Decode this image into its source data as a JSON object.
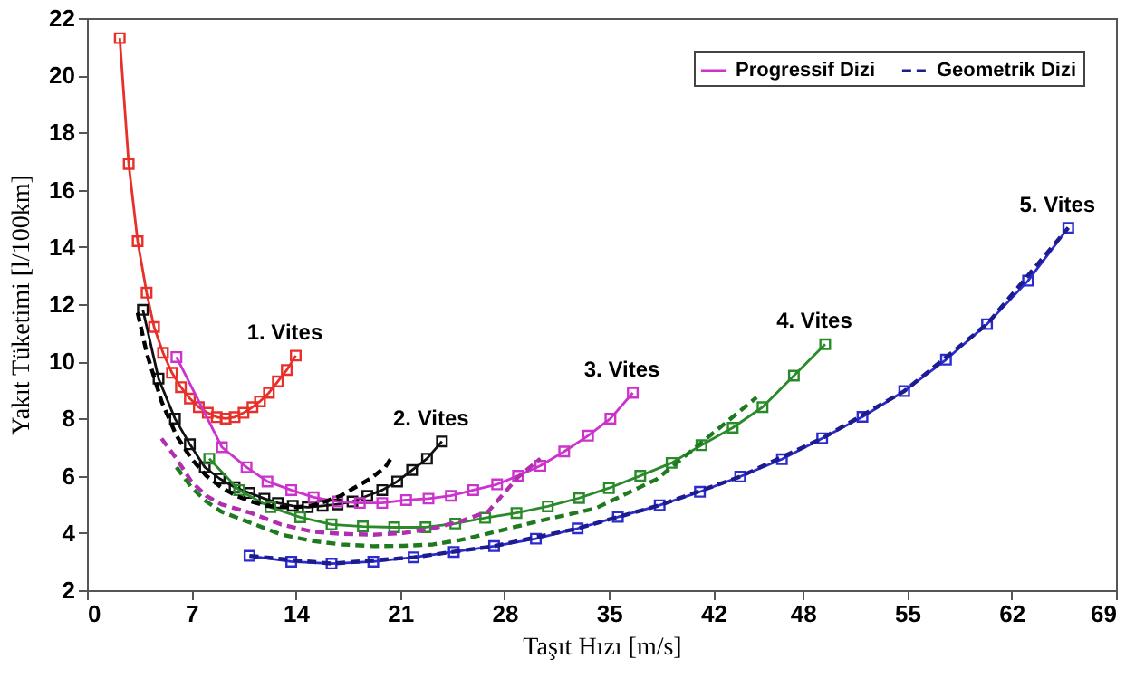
{
  "chart_data": {
    "type": "line",
    "xlabel": "Taşıt Hızı [m/s]",
    "ylabel": "Yakıt Tüketimi [l/100km]",
    "xlim": [
      0,
      69
    ],
    "xticks": [
      0,
      7,
      14,
      21,
      28,
      35,
      42,
      48,
      55,
      62,
      69
    ],
    "ylim": [
      2,
      22
    ],
    "yticks": [
      2,
      4,
      6,
      8,
      10,
      12,
      14,
      16,
      18,
      20,
      22
    ],
    "grid": false,
    "legend": "top right",
    "series": [
      {
        "color": "#e8302a",
        "marker": "square",
        "line_style": "solid",
        "x": [
          2.2,
          2.8,
          3.4,
          4.0,
          4.5,
          5.1,
          5.7,
          6.3,
          6.9,
          7.5,
          8.1,
          8.7,
          9.3,
          9.9,
          10.5,
          11.1,
          11.6,
          12.2,
          12.8,
          13.4,
          14.0
        ],
        "values": [
          21.3,
          16.9,
          14.2,
          12.4,
          11.2,
          10.3,
          9.6,
          9.1,
          8.7,
          8.4,
          8.2,
          8.05,
          8.0,
          8.05,
          8.2,
          8.4,
          8.6,
          8.9,
          9.3,
          9.7,
          10.2
        ]
      },
      {
        "color": "#111111",
        "marker": "square",
        "line_style": "solid",
        "x": [
          3.75,
          4.8,
          5.9,
          6.9,
          7.9,
          8.9,
          9.9,
          10.9,
          11.9,
          12.8,
          13.8,
          14.8,
          15.8,
          16.8,
          17.8,
          18.8,
          19.8,
          20.8,
          21.8,
          22.8,
          23.8
        ],
        "values": [
          11.8,
          9.4,
          8.0,
          7.1,
          6.3,
          5.9,
          5.6,
          5.4,
          5.2,
          5.05,
          4.95,
          4.9,
          4.95,
          5.0,
          5.1,
          5.3,
          5.5,
          5.8,
          6.2,
          6.6,
          7.2
        ]
      },
      {
        "name": "Progressif Dizi",
        "color": "#cc33cc",
        "marker": "square",
        "line_style": "solid",
        "x": [
          6.0,
          9.05,
          10.7,
          12.1,
          13.7,
          15.2,
          16.8,
          18.3,
          19.8,
          21.4,
          22.9,
          24.4,
          25.9,
          27.5,
          28.9,
          30.4,
          32.0,
          33.6,
          35.1,
          36.6
        ],
        "values": [
          10.15,
          7.0,
          6.3,
          5.8,
          5.5,
          5.25,
          5.1,
          5.05,
          5.05,
          5.15,
          5.2,
          5.3,
          5.5,
          5.7,
          6.0,
          6.35,
          6.85,
          7.4,
          8.0,
          8.9
        ]
      },
      {
        "color": "#2a8a2a",
        "marker": "square",
        "line_style": "solid",
        "x": [
          8.2,
          10.2,
          12.3,
          14.3,
          16.4,
          18.5,
          20.6,
          22.7,
          24.7,
          26.7,
          28.8,
          30.9,
          33.0,
          35.0,
          37.1,
          39.2,
          41.2,
          43.3,
          45.3,
          47.4,
          49.5
        ],
        "values": [
          6.6,
          5.5,
          4.9,
          4.55,
          4.3,
          4.23,
          4.2,
          4.2,
          4.33,
          4.53,
          4.7,
          4.93,
          5.22,
          5.57,
          6.0,
          6.45,
          7.07,
          7.68,
          8.4,
          9.5,
          10.6
        ]
      },
      {
        "color": "#2b2bd0",
        "marker": "square",
        "line_style": "solid",
        "x": [
          10.9,
          13.7,
          16.4,
          19.2,
          21.9,
          24.6,
          27.3,
          30.1,
          32.9,
          35.6,
          38.4,
          41.1,
          43.8,
          46.6,
          49.3,
          52.0,
          54.8,
          57.6,
          60.35,
          63.1,
          65.8
        ],
        "values": [
          3.2,
          3.0,
          2.93,
          3.0,
          3.15,
          3.34,
          3.54,
          3.8,
          4.16,
          4.56,
          4.97,
          5.44,
          5.97,
          6.58,
          7.31,
          8.06,
          8.96,
          10.06,
          11.3,
          12.82,
          14.67
        ]
      },
      {
        "color": "#000000",
        "marker": "none",
        "line_style": "dashed",
        "x": [
          3.4,
          4.0,
          5.0,
          6.0,
          7.0,
          8.0,
          9.0,
          10.0,
          11.0,
          12.0,
          13.0,
          14.0,
          15.0,
          16.0,
          17.0,
          18.0,
          19.0,
          20.0,
          20.5
        ],
        "values": [
          11.7,
          10.3,
          8.6,
          7.4,
          6.6,
          6.0,
          5.6,
          5.3,
          5.1,
          4.95,
          4.9,
          4.9,
          4.95,
          5.1,
          5.3,
          5.6,
          5.9,
          6.3,
          6.7
        ]
      },
      {
        "color": "#b02fb0",
        "marker": "none",
        "line_style": "dashed",
        "x": [
          5.0,
          6.0,
          7.0,
          8.0,
          9.0,
          11.0,
          13.0,
          15.1,
          17.1,
          19.2,
          21.2,
          23.2,
          25.0,
          26.9,
          28.9,
          30.4
        ],
        "values": [
          7.3,
          6.6,
          5.8,
          5.3,
          5.0,
          4.7,
          4.3,
          4.05,
          3.97,
          3.94,
          4.0,
          4.16,
          4.4,
          4.75,
          5.95,
          6.6
        ]
      },
      {
        "color": "#1f7a1f",
        "marker": "none",
        "line_style": "dashed",
        "x": [
          6.0,
          7.0,
          8.0,
          9.0,
          11.0,
          13.0,
          15.1,
          17.1,
          19.2,
          21.2,
          23.2,
          25.0,
          26.9,
          30.0,
          34.1,
          38.2,
          41.0,
          44.9
        ],
        "values": [
          6.3,
          5.6,
          5.1,
          4.75,
          4.35,
          3.95,
          3.72,
          3.6,
          3.54,
          3.55,
          3.6,
          3.75,
          3.98,
          4.38,
          4.86,
          5.88,
          7.07,
          8.74
        ]
      },
      {
        "name": "Geometrik Dizi",
        "color": "#1c1c8c",
        "marker": "none",
        "line_style": "dashed",
        "x": [
          10.9,
          16.4,
          21.9,
          27.3,
          32.9,
          38.4,
          43.8,
          49.3,
          54.8,
          60.35,
          65.8
        ],
        "values": [
          3.2,
          2.93,
          3.15,
          3.54,
          4.16,
          4.97,
          5.97,
          7.31,
          8.96,
          11.3,
          14.67
        ]
      }
    ],
    "annotations": [
      {
        "text": "1. Vites",
        "x": 14.0,
        "y": 10.2
      },
      {
        "text": "2. Vites",
        "x": 23.8,
        "y": 7.2
      },
      {
        "text": "3. Vites",
        "x": 36.6,
        "y": 8.9
      },
      {
        "text": "4. Vites",
        "x": 49.5,
        "y": 10.6
      },
      {
        "text": "5. Vites",
        "x": 65.8,
        "y": 14.67
      }
    ]
  }
}
